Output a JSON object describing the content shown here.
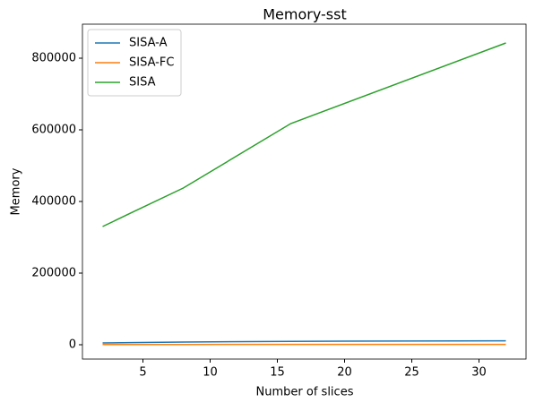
{
  "chart_data": {
    "type": "line",
    "title": "Memory-sst",
    "xlabel": "Number of slices",
    "ylabel": "Memory",
    "x": [
      2,
      4,
      8,
      16,
      32
    ],
    "series": [
      {
        "name": "SISA-A",
        "color": "#1f77b4",
        "values": [
          5000,
          6000,
          7500,
          9500,
          11000
        ]
      },
      {
        "name": "SISA-FC",
        "color": "#ff7f0e",
        "values": [
          500,
          600,
          700,
          900,
          1000
        ]
      },
      {
        "name": "SISA",
        "color": "#2ca02c",
        "values": [
          330000,
          366000,
          437500,
          617500,
          842500
        ]
      }
    ],
    "xlim": [
      0.5,
      33.5
    ],
    "ylim": [
      -40000,
      895000
    ],
    "xticks": [
      5,
      10,
      15,
      20,
      25,
      30
    ],
    "yticks": [
      0,
      200000,
      400000,
      600000,
      800000
    ],
    "legend": "upper left",
    "grid": false
  }
}
